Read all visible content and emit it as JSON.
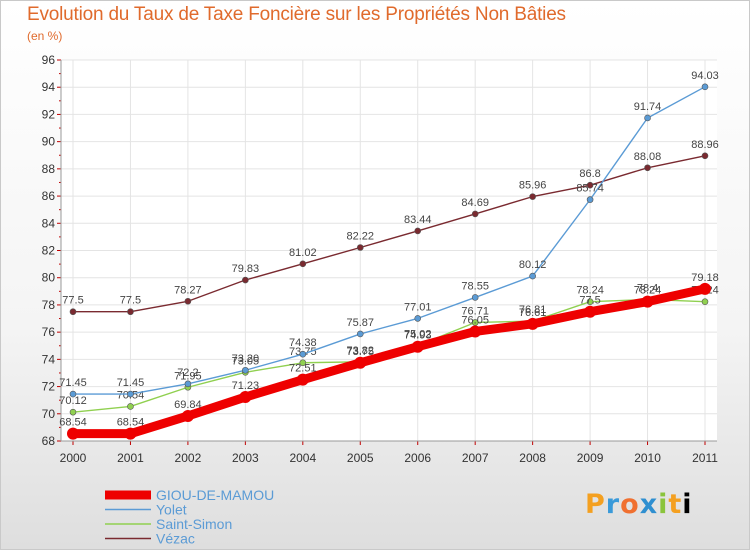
{
  "header": {
    "title": "Evolution du Taux de Taxe Foncière sur les Propriétés Non Bâties",
    "unit": "(en %)"
  },
  "logo": {
    "text": "Proxiti"
  },
  "chart_data": {
    "type": "line",
    "title": "Evolution du Taux de Taxe Foncière sur les Propriétés Non Bâties",
    "ylabel": "(en %)",
    "xlabel": "",
    "x": [
      2000,
      2001,
      2002,
      2003,
      2004,
      2005,
      2006,
      2007,
      2008,
      2009,
      2010,
      2011
    ],
    "ylim": [
      68,
      96
    ],
    "yticks": [
      68,
      70,
      72,
      74,
      76,
      78,
      80,
      82,
      84,
      86,
      88,
      90,
      92,
      94,
      96
    ],
    "grid": true,
    "legend": "bottom-left",
    "series": [
      {
        "name": "GIOU-DE-MAMOU",
        "color": "#ee0000",
        "values": [
          68.54,
          68.54,
          69.84,
          71.23,
          72.51,
          73.75,
          74.93,
          76.05,
          76.61,
          77.5,
          78.24,
          79.18
        ],
        "labels": [
          "68.54",
          "68.54",
          "69.84",
          "71.23",
          "72.51",
          "73.75",
          "74.93",
          "76.05",
          "76.61",
          "77.5",
          "78.24",
          "79.18"
        ]
      },
      {
        "name": "Yolet",
        "color": "#5b9bd5",
        "values": [
          71.45,
          71.45,
          72.2,
          73.2,
          74.38,
          75.87,
          77.01,
          78.55,
          80.12,
          85.74,
          91.74,
          94.03
        ],
        "labels": [
          "71.45",
          "71.45",
          "72.2",
          "73.20",
          "74.38",
          "75.87",
          "77.01",
          "78.55",
          "80.12",
          "85.74",
          "91.74",
          "94.03"
        ]
      },
      {
        "name": "Saint-Simon",
        "color": "#90d050",
        "values": [
          70.12,
          70.54,
          71.95,
          73.05,
          73.75,
          73.82,
          75.02,
          76.71,
          76.81,
          78.24,
          78.4,
          78.24
        ],
        "labels": [
          "70.12",
          "70.54",
          "71.95",
          "73.05",
          "73.75",
          "73.82",
          "75.02",
          "76.71",
          "76.81",
          "78.24",
          "78.4",
          "78.24"
        ]
      },
      {
        "name": "Vézac",
        "color": "#7a2a30",
        "values": [
          77.5,
          77.5,
          78.27,
          79.83,
          81.02,
          82.22,
          83.44,
          84.69,
          85.96,
          86.8,
          88.08,
          88.96
        ],
        "labels": [
          "77.5",
          "77.5",
          "78.27",
          "79.83",
          "81.02",
          "82.22",
          "83.44",
          "84.69",
          "85.96",
          "86.8",
          "88.08",
          "88.96"
        ]
      }
    ]
  }
}
